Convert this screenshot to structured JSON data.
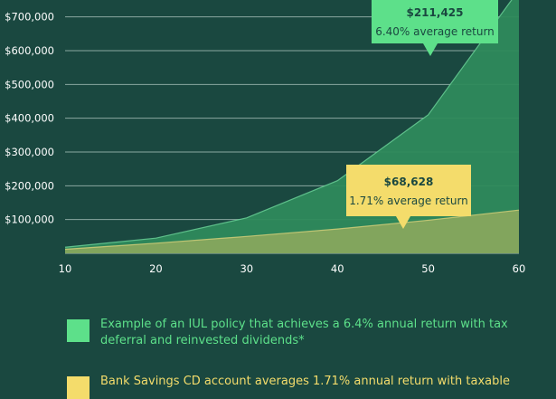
{
  "chart_data": {
    "type": "area",
    "x": [
      10,
      20,
      30,
      40,
      50,
      60
    ],
    "xlim": [
      10,
      60
    ],
    "ylim": [
      0,
      750000
    ],
    "y_ticks": [
      "$100,000",
      "$200,000",
      "$300,000",
      "$400,000",
      "$500,000",
      "$600,000",
      "$700,000"
    ],
    "x_ticks": [
      "10",
      "20",
      "30",
      "40",
      "50",
      "60"
    ],
    "series": [
      {
        "x": [
          10,
          20,
          30,
          40,
          50,
          60
        ],
        "values": [
          18000,
          45000,
          105000,
          215000,
          410000,
          780000
        ],
        "color": "#2e8a5c",
        "line_color": "#6dd59a"
      },
      {
        "x": [
          10,
          20,
          30,
          40,
          50,
          60
        ],
        "values": [
          12000,
          30000,
          50000,
          72000,
          98000,
          128000
        ],
        "color": "#87a75e",
        "line_color": "#d7d17a"
      }
    ],
    "callouts": [
      {
        "value": "$211,425",
        "text": "6.40% average return",
        "color": "#5de08a"
      },
      {
        "value": "$68,628",
        "text": "1.71% average return",
        "color": "#f4dc6b"
      }
    ],
    "grid": true
  },
  "legend": [
    {
      "text": "Example of an IUL policy that achieves a 6.4% annual return with tax deferral and reinvested dividends*",
      "color": "#5de08a"
    },
    {
      "text": "Bank Savings CD account averages 1.71% annual return with taxable",
      "color": "#f4dc6b"
    }
  ]
}
